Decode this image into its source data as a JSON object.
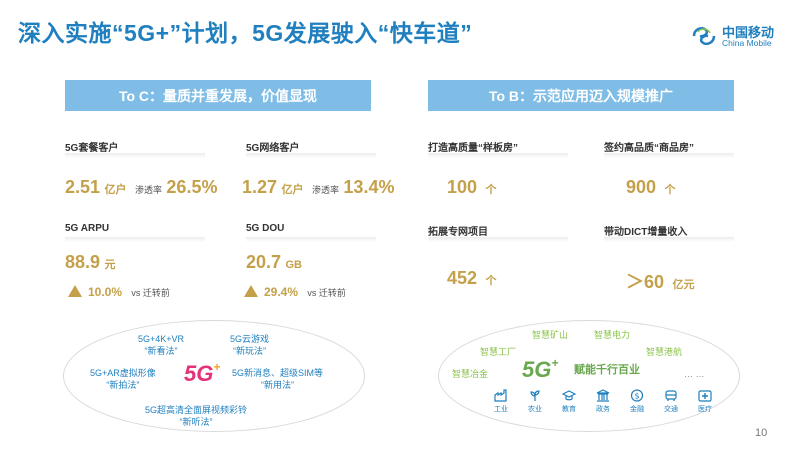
{
  "title": "深入实施“5G+”计划，5G发展驶入“快车道”",
  "logo": {
    "cn": "中国移动",
    "en": "China Mobile",
    "icon": "china-mobile-logo"
  },
  "left": {
    "banner": "To C：量质并重发展，价值显现",
    "m1": {
      "label": "5G套餐客户",
      "value": "2.51",
      "unit": "亿户",
      "rate_label": "渗透率",
      "rate": "26.5%"
    },
    "m2": {
      "label": "5G网络客户",
      "value": "1.27",
      "unit": "亿户",
      "rate_label": "渗透率",
      "rate": "13.4%"
    },
    "m3": {
      "label": "5G ARPU",
      "value": "88.9",
      "unit": "元",
      "delta": "10.0%",
      "delta_note": "vs 迁转前"
    },
    "m4": {
      "label": "5G  DOU",
      "value": "20.7",
      "unit": "GB",
      "delta": "29.4%",
      "delta_note": "vs 迁转前"
    },
    "oval": {
      "logo": "5G",
      "items": [
        {
          "a": "5G+4K+VR",
          "b": "“新看法”"
        },
        {
          "a": "5G云游戏",
          "b": "“新玩法”"
        },
        {
          "a": "5G+AR虚拟形像",
          "b": "“新拍法”"
        },
        {
          "a": "5G新消息、超级SIM等",
          "b": "“新用法”"
        },
        {
          "a": "5G超高清全面屏视频彩铃",
          "b": "“新听法”"
        }
      ]
    }
  },
  "right": {
    "banner": "To B：示范应用迈入规模推广",
    "m1": {
      "label": "打造高质量“样板房”",
      "value": "100",
      "unit": "个"
    },
    "m2": {
      "label": "签约高品质“商品房”",
      "value": "900",
      "unit": "个"
    },
    "m3": {
      "label": "拓展专网项目",
      "value": "452",
      "unit": "个"
    },
    "m4": {
      "label": "带动DICT增量收入",
      "value": "＞60",
      "unit": "亿元"
    },
    "oval": {
      "logo": "5G",
      "center": "赋能千行百业",
      "items": [
        "智慧矿山",
        "智慧电力",
        "智慧工厂",
        "智慧港航",
        "智慧冶金",
        "… …"
      ],
      "icons": [
        {
          "icon": "factory-icon",
          "label": "工业"
        },
        {
          "icon": "agriculture-icon",
          "label": "农业"
        },
        {
          "icon": "education-icon",
          "label": "教育"
        },
        {
          "icon": "government-icon",
          "label": "政务"
        },
        {
          "icon": "finance-icon",
          "label": "金融"
        },
        {
          "icon": "transport-icon",
          "label": "交通"
        },
        {
          "icon": "medical-icon",
          "label": "医疗"
        }
      ]
    }
  },
  "page_number": "10",
  "colors": {
    "title": "#1f7fbf",
    "banner": "#7fbde6",
    "gold": "#c4a04a",
    "green": "#8bc34a"
  }
}
